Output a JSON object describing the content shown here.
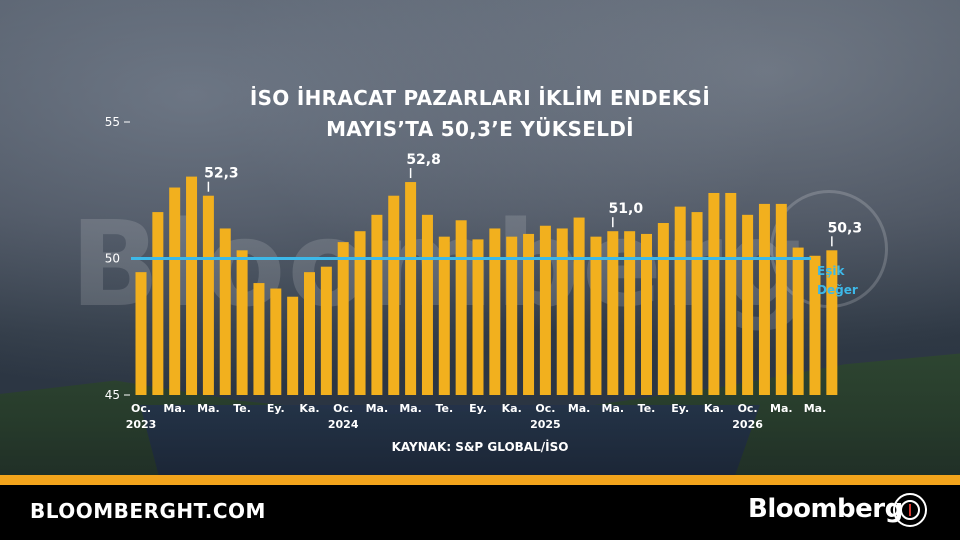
{
  "header": {
    "title_line1": "İSO İHRACAT PAZARLARI İKLİM ENDEKSİ",
    "title_line2": "MAYIS’TA 50,3’E YÜKSELDİ"
  },
  "watermark": "Bloomberg",
  "source": "KAYNAK: S&P GLOBAL/İSO",
  "footer": {
    "site": "BLOOMBERGHT.COM",
    "brand": "Bloomberg"
  },
  "colors": {
    "bar": "#f2b01e",
    "threshold": "#3db8e8",
    "footer_stripe": "#f2a41c"
  },
  "chart_data": {
    "type": "bar",
    "ylim": [
      45,
      55
    ],
    "yticks": [
      "45",
      "50",
      "55"
    ],
    "x_tick_labels": [
      "Oc.",
      "Ma.",
      "Ma.",
      "Te.",
      "Ey.",
      "Ka.",
      "Oc.",
      "Ma.",
      "Ma.",
      "Te.",
      "Ey.",
      "Ka.",
      "Oc.",
      "Ma.",
      "Ma.",
      "Te.",
      "Ey.",
      "Ka.",
      "Oc.",
      "Ma.",
      "Ma."
    ],
    "year_labels": [
      "2023",
      "2024",
      "2025",
      "2026"
    ],
    "values": [
      49.5,
      51.7,
      52.6,
      53.0,
      52.3,
      51.1,
      50.3,
      49.1,
      48.9,
      48.6,
      49.5,
      49.7,
      50.6,
      51.0,
      51.6,
      52.3,
      52.8,
      51.6,
      50.8,
      51.4,
      50.7,
      51.1,
      50.8,
      50.9,
      51.2,
      51.1,
      51.5,
      50.8,
      51.0,
      51.0,
      50.9,
      51.3,
      51.9,
      51.7,
      52.4,
      52.4,
      51.6,
      52.0,
      52.0,
      50.4,
      50.1,
      50.3
    ],
    "data_labels": [
      {
        "index": 4,
        "text": "52,3"
      },
      {
        "index": 16,
        "text": "52,8"
      },
      {
        "index": 28,
        "text": "51,0"
      },
      {
        "index": 41,
        "text": "50,3"
      }
    ],
    "threshold": {
      "value": 50,
      "label_line1": "Eşik",
      "label_line2": "Değer"
    }
  }
}
